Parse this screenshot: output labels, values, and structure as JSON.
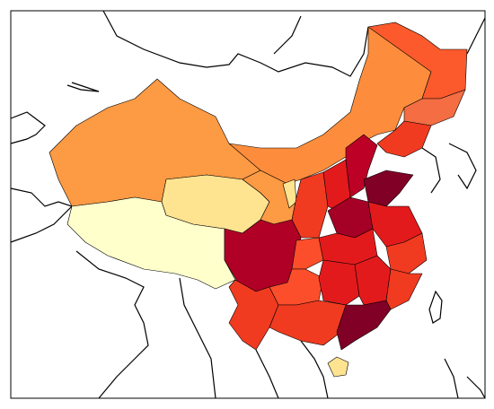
{
  "map": {
    "regions": [
      {
        "color": "#fd9a44"
      },
      {
        "color": "#ffffcc"
      },
      {
        "color": "#fee391"
      },
      {
        "color": "#fd8d3c"
      },
      {
        "color": "#fc5a2d"
      },
      {
        "color": "#f46d43"
      },
      {
        "color": "#f03b20"
      },
      {
        "color": "#fd9a44"
      },
      {
        "color": "#fee391"
      },
      {
        "color": "#f03b20"
      },
      {
        "color": "#e31a1c"
      },
      {
        "color": "#bd0026"
      },
      {
        "color": "#800026"
      },
      {
        "color": "#a50026"
      },
      {
        "color": "#e31a1c"
      },
      {
        "color": "#b10026"
      },
      {
        "color": "#fc4e2a"
      },
      {
        "color": "#e31a1c"
      },
      {
        "color": "#f03b20"
      },
      {
        "color": "#f03b20"
      },
      {
        "color": "#fc4e2a"
      },
      {
        "color": "#e31a1c"
      },
      {
        "color": "#e31a1c"
      },
      {
        "color": "#f03b20"
      },
      {
        "color": "#f03b20"
      },
      {
        "color": "#800026"
      },
      {
        "color": "#fee391"
      }
    ]
  }
}
